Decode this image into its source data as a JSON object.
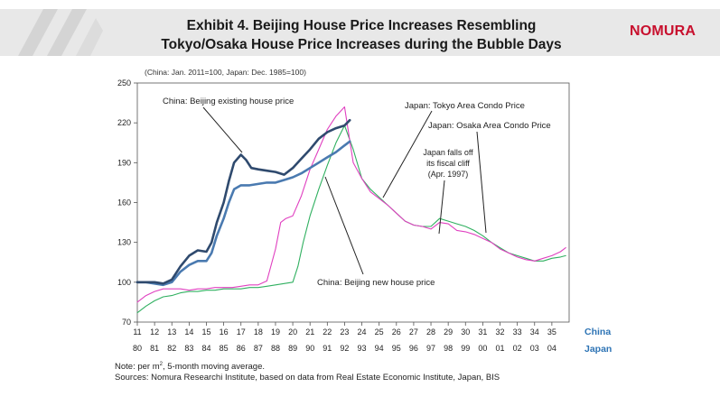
{
  "header": {
    "title_line1": "Exhibit 4. Beijing House Price Increases Resembling",
    "title_line2": "Tokyo/Osaka House Price Increases during the Bubble Days",
    "logo": "NOMURA"
  },
  "footnote": {
    "note_prefix": "Note: per m",
    "note_sup": "2",
    "note_suffix": ", 5-month moving average.",
    "sources": "Sources: Nomura Researchi Institute, based on data from Real Estate Economic Institute, Japan, BIS"
  },
  "chart_data": {
    "type": "line",
    "base_note": "(China: Jan. 2011=100, Japan: Dec. 1985=100)",
    "ylim": [
      70,
      250
    ],
    "yticks": [
      70,
      100,
      130,
      160,
      190,
      220,
      250
    ],
    "x_china_labels": [
      "11",
      "12",
      "13",
      "14",
      "15",
      "16",
      "17",
      "18",
      "19",
      "20",
      "21",
      "22",
      "23",
      "24",
      "25",
      "26",
      "27",
      "28",
      "29",
      "30",
      "31",
      "32",
      "33",
      "34",
      "35"
    ],
    "x_japan_labels": [
      "80",
      "81",
      "82",
      "83",
      "84",
      "85",
      "86",
      "87",
      "88",
      "89",
      "90",
      "91",
      "92",
      "93",
      "94",
      "95",
      "96",
      "97",
      "98",
      "99",
      "00",
      "01",
      "02",
      "03",
      "04"
    ],
    "x_axis_names": {
      "china": "China",
      "japan": "Japan"
    },
    "colors": {
      "china_existing": "#2f4a6e",
      "china_new": "#4a7ab0",
      "tokyo": "#e040c0",
      "osaka": "#30b060",
      "axis_name": "#2e74b5"
    },
    "series": [
      {
        "name": "China: Beijing existing  house price",
        "x": [
          11,
          11.5,
          12,
          12.5,
          13,
          13.5,
          14,
          14.5,
          15,
          15.3,
          15.6,
          16,
          16.3,
          16.6,
          17,
          17.3,
          17.6,
          18,
          18.5,
          19,
          19.5,
          20,
          20.5,
          21,
          21.5,
          22,
          22.5,
          23,
          23.3
        ],
        "y": [
          100,
          100,
          100,
          99,
          102,
          112,
          120,
          124,
          123,
          130,
          145,
          160,
          176,
          190,
          196,
          192,
          186,
          185,
          184,
          183,
          181,
          186,
          193,
          200,
          208,
          213,
          216,
          218,
          222
        ]
      },
      {
        "name": "China: Beijing new house price",
        "x": [
          11,
          11.5,
          12,
          12.5,
          13,
          13.5,
          14,
          14.5,
          15,
          15.3,
          15.6,
          16,
          16.3,
          16.6,
          17,
          17.5,
          18,
          18.5,
          19,
          19.5,
          20,
          20.5,
          21,
          21.5,
          22,
          22.5,
          23,
          23.3
        ],
        "y": [
          100,
          100,
          99,
          98,
          100,
          108,
          113,
          116,
          116,
          122,
          135,
          148,
          160,
          170,
          173,
          173,
          174,
          175,
          175,
          177,
          179,
          182,
          186,
          190,
          194,
          198,
          203,
          206
        ]
      },
      {
        "name": "Japan: Tokyo Area Condo Price",
        "x": [
          11,
          11.5,
          12,
          12.5,
          13,
          13.5,
          14,
          14.5,
          15,
          15.5,
          16,
          16.5,
          17,
          17.5,
          18,
          18.5,
          19,
          19.3,
          19.6,
          20,
          20.5,
          21,
          21.5,
          22,
          22.5,
          23,
          23.5,
          24,
          24.5,
          25,
          25.5,
          26,
          26.5,
          27,
          27.5,
          28,
          28.5,
          29,
          29.5,
          30,
          30.5,
          31,
          31.5,
          32,
          32.5,
          33,
          33.5,
          34,
          34.5,
          35,
          35.5,
          35.8
        ],
        "y": [
          85,
          90,
          93,
          95,
          95,
          95,
          94,
          95,
          95,
          96,
          96,
          96,
          97,
          98,
          98,
          101,
          125,
          145,
          148,
          150,
          165,
          185,
          200,
          215,
          225,
          232,
          190,
          178,
          168,
          163,
          158,
          152,
          146,
          143,
          142,
          140,
          145,
          144,
          139,
          138,
          136,
          133,
          130,
          125,
          122,
          119,
          117,
          116,
          118,
          120,
          123,
          126
        ]
      },
      {
        "name": "Japan: Osaka Area Condo Price",
        "x": [
          11,
          11.5,
          12,
          12.5,
          13,
          13.5,
          14,
          14.5,
          15,
          15.5,
          16,
          16.5,
          17,
          17.5,
          18,
          18.5,
          19,
          19.5,
          20,
          20.3,
          20.6,
          21,
          21.5,
          22,
          22.5,
          23,
          23.5,
          24,
          24.5,
          25,
          25.5,
          26,
          26.5,
          27,
          27.5,
          28,
          28.5,
          29,
          29.5,
          30,
          30.5,
          31,
          31.5,
          32,
          32.5,
          33,
          33.5,
          34,
          34.5,
          35,
          35.5,
          35.8
        ],
        "y": [
          77,
          82,
          86,
          89,
          90,
          92,
          93,
          93,
          94,
          94,
          95,
          95,
          95,
          96,
          96,
          97,
          98,
          99,
          100,
          112,
          130,
          150,
          170,
          188,
          205,
          218,
          200,
          178,
          170,
          164,
          158,
          152,
          146,
          143,
          142,
          142,
          148,
          146,
          144,
          142,
          139,
          135,
          130,
          126,
          122,
          120,
          118,
          116,
          116,
          118,
          119,
          120
        ]
      }
    ],
    "annotations": [
      {
        "text": "China: Beijing existing  house price"
      },
      {
        "text": "China: Beijing new house price"
      },
      {
        "text": "Japan: Tokyo Area Condo Price"
      },
      {
        "text": "Japan: Osaka Area Condo Price"
      },
      {
        "text": "Japan falls off"
      },
      {
        "text": "its fiscal cliff"
      },
      {
        "text": "(Apr. 1997)"
      }
    ]
  }
}
